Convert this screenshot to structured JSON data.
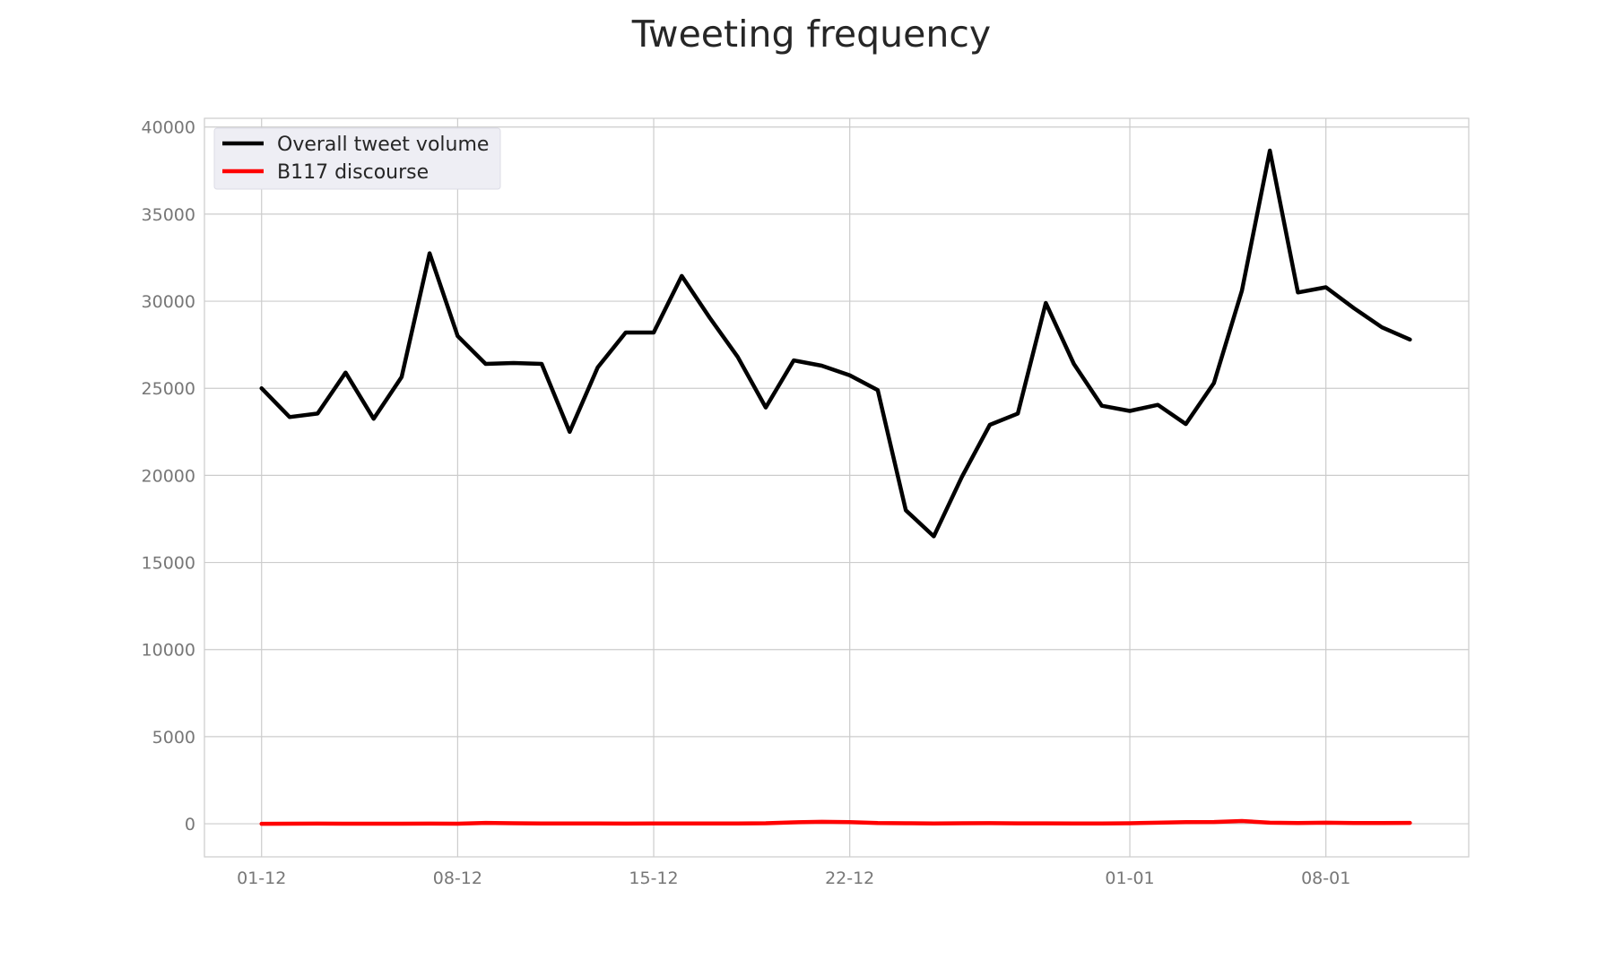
{
  "chart_data": {
    "type": "line",
    "title": "Tweeting frequency",
    "xlabel": "",
    "ylabel": "",
    "x_start": "2020-12-01",
    "x_step_days": 1,
    "x_ticks": [
      {
        "day": 0,
        "label": "01-12"
      },
      {
        "day": 7,
        "label": "08-12"
      },
      {
        "day": 14,
        "label": "15-12"
      },
      {
        "day": 21,
        "label": "22-12"
      },
      {
        "day": 31,
        "label": "01-01"
      },
      {
        "day": 38,
        "label": "08-01"
      }
    ],
    "x_range_days": [
      -2.04,
      43.1
    ],
    "ylim": [
      -1900,
      40500
    ],
    "y_ticks": [
      0,
      5000,
      10000,
      15000,
      20000,
      25000,
      30000,
      35000,
      40000
    ],
    "grid": true,
    "legend_position": "top-left",
    "series": [
      {
        "name": "Overall tweet volume",
        "color": "#000000",
        "values": [
          25000,
          23350,
          23550,
          25900,
          23250,
          25650,
          32750,
          28000,
          26400,
          26450,
          26400,
          22500,
          26200,
          28200,
          28200,
          31450,
          29050,
          26800,
          23900,
          26600,
          26300,
          25750,
          24900,
          18000,
          16500,
          19900,
          22900,
          23550,
          29900,
          26400,
          24000,
          23700,
          24050,
          22950,
          25300,
          30600,
          38650,
          30500,
          30800,
          29600,
          28500,
          27800
        ]
      },
      {
        "name": "B117 discourse",
        "color": "#ff0000",
        "values": [
          0,
          5,
          10,
          5,
          5,
          5,
          10,
          5,
          50,
          30,
          20,
          15,
          15,
          10,
          20,
          15,
          20,
          15,
          30,
          80,
          110,
          90,
          40,
          30,
          20,
          30,
          35,
          25,
          25,
          20,
          20,
          30,
          60,
          90,
          100,
          160,
          60,
          40,
          60,
          40,
          40,
          50
        ]
      }
    ]
  }
}
